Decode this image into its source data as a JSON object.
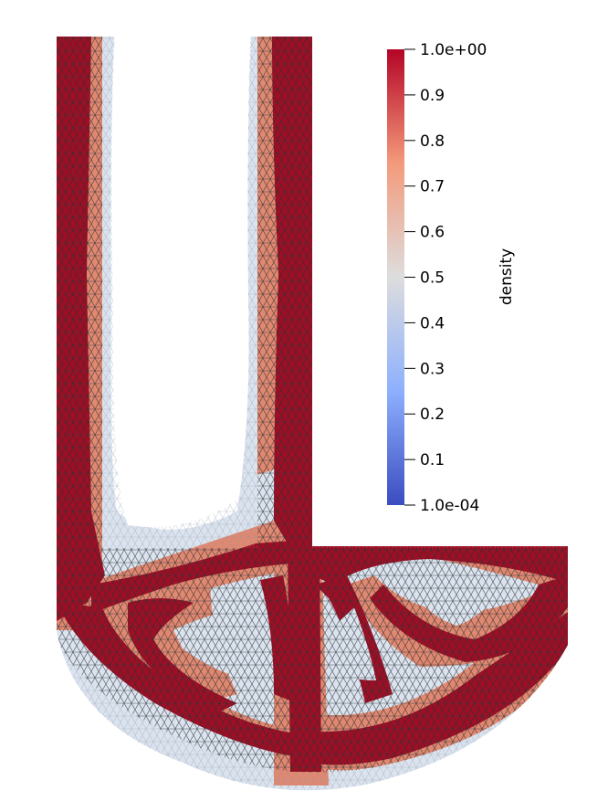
{
  "chart_data": {
    "type": "heatmap",
    "scalar_bar": {
      "title": "density",
      "orientation": "vertical",
      "placement": "top-right",
      "range": [
        0.0001,
        1.0
      ],
      "ticks": [
        {
          "value": 1.0,
          "label": "1.0e+00"
        },
        {
          "value": 0.9,
          "label": "0.9"
        },
        {
          "value": 0.8,
          "label": "0.8"
        },
        {
          "value": 0.7,
          "label": "0.7"
        },
        {
          "value": 0.6,
          "label": "0.6"
        },
        {
          "value": 0.5,
          "label": "0.5"
        },
        {
          "value": 0.4,
          "label": "0.4"
        },
        {
          "value": 0.3,
          "label": "0.3"
        },
        {
          "value": 0.2,
          "label": "0.2"
        },
        {
          "value": 0.1,
          "label": "0.1"
        },
        {
          "value": 0.0001,
          "label": "1.0e-04"
        }
      ],
      "colormap_stops": [
        {
          "value": 0.0,
          "color": "#3b4cc0"
        },
        {
          "value": 0.25,
          "color": "#8db0fe"
        },
        {
          "value": 0.5,
          "color": "#dddddd"
        },
        {
          "value": 0.75,
          "color": "#f49a7b"
        },
        {
          "value": 1.0,
          "color": "#b40426"
        }
      ]
    },
    "field": {
      "colors": {
        "solid": "#9e0e24",
        "transition": "#e08870",
        "halo": "#dbe3ee",
        "mesh": "#000000"
      }
    }
  }
}
